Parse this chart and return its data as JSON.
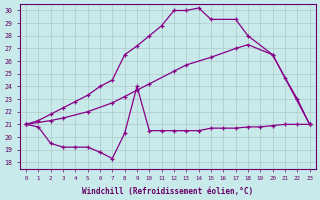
{
  "background_color": "#c8eaea",
  "grid_color": "#b0c8c8",
  "line_color": "#880088",
  "marker": "+",
  "xlabel": "Windchill (Refroidissement éolien,°C)",
  "ylabel_ticks": [
    18,
    19,
    20,
    21,
    22,
    23,
    24,
    25,
    26,
    27,
    28,
    29,
    30
  ],
  "xticks": [
    0,
    1,
    2,
    3,
    4,
    5,
    6,
    7,
    8,
    9,
    10,
    11,
    12,
    13,
    14,
    15,
    16,
    17,
    18,
    19,
    20,
    21,
    22,
    23
  ],
  "xlim": [
    -0.5,
    23.5
  ],
  "ylim": [
    17.5,
    30.5
  ],
  "line1_x": [
    0,
    1,
    2,
    3,
    4,
    5,
    6,
    7,
    8,
    9,
    10,
    11,
    12,
    13,
    14,
    15,
    17,
    18,
    20,
    21,
    22,
    23
  ],
  "line1_y": [
    21.0,
    21.3,
    21.8,
    22.3,
    22.8,
    23.3,
    24.0,
    24.5,
    26.5,
    27.2,
    28.0,
    28.8,
    30.0,
    30.0,
    30.2,
    29.3,
    29.3,
    28.0,
    26.5,
    24.7,
    23.0,
    21.0
  ],
  "line2_x": [
    0,
    2,
    3,
    5,
    7,
    8,
    9,
    10,
    12,
    13,
    15,
    17,
    18,
    20,
    23
  ],
  "line2_y": [
    21.0,
    21.3,
    21.5,
    22.0,
    22.7,
    23.2,
    23.7,
    24.2,
    25.2,
    25.7,
    26.3,
    27.0,
    27.3,
    26.5,
    21.0
  ],
  "line3_x": [
    0,
    1,
    2,
    3,
    4,
    5,
    6,
    7,
    8,
    9,
    10,
    11,
    12,
    13,
    14,
    15,
    16,
    17,
    18,
    19,
    20,
    21,
    22,
    23
  ],
  "line3_y": [
    21.0,
    20.8,
    19.5,
    19.2,
    19.2,
    19.2,
    18.8,
    18.3,
    20.3,
    24.0,
    20.5,
    20.5,
    20.5,
    20.5,
    20.5,
    20.7,
    20.7,
    20.7,
    20.8,
    20.8,
    20.9,
    21.0,
    21.0,
    21.0
  ]
}
